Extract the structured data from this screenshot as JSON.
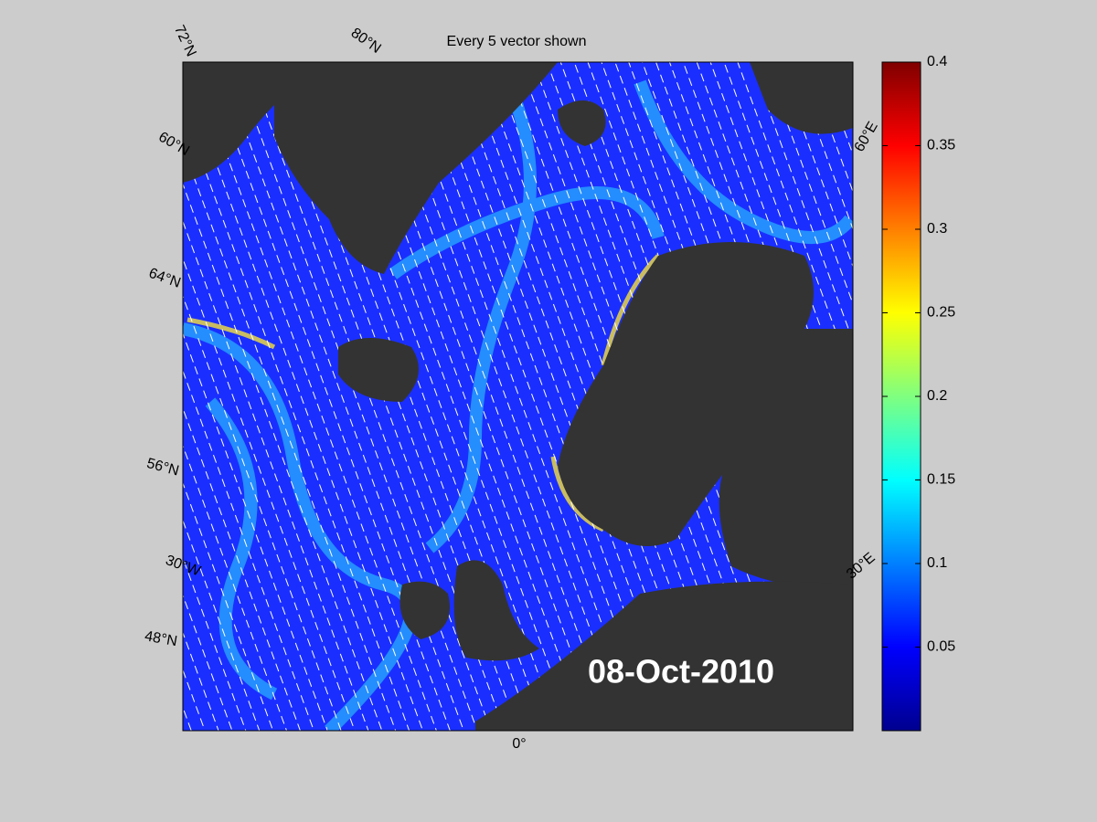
{
  "title": "Every 5 vector shown",
  "date": "08-Oct-2010",
  "graticule_labels": [
    "72°N",
    "80°N",
    "60°N",
    "64°N",
    "56°N",
    "30°W",
    "48°N",
    "0°",
    "30°E",
    "60°E"
  ],
  "colorbar": {
    "lim": [
      0,
      0.4
    ],
    "ticks": [
      0.05,
      0.1,
      0.15,
      0.2,
      0.25,
      0.3,
      0.35,
      0.4
    ]
  }
}
